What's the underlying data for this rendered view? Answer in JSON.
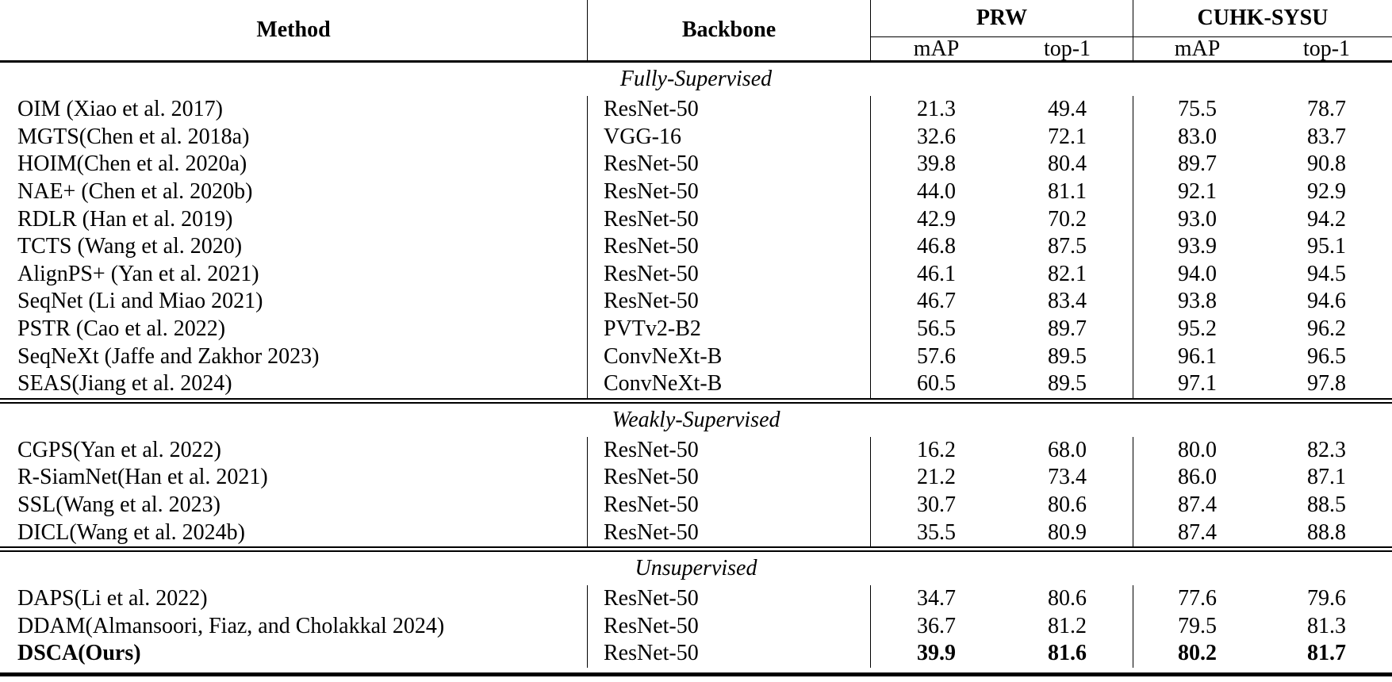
{
  "table": {
    "header": {
      "method": "Method",
      "backbone": "Backbone",
      "groups": [
        {
          "label": "PRW",
          "sub": [
            "mAP",
            "top-1"
          ]
        },
        {
          "label": "CUHK-SYSU",
          "sub": [
            "mAP",
            "top-1"
          ]
        }
      ]
    },
    "sections": [
      {
        "label": "Fully-Supervised",
        "rows": [
          {
            "method": "OIM (Xiao et al. 2017)",
            "backbone": "ResNet-50",
            "values": [
              "21.3",
              "49.4",
              "75.5",
              "78.7"
            ],
            "bold": false
          },
          {
            "method": "MGTS(Chen et al. 2018a)",
            "backbone": "VGG-16",
            "values": [
              "32.6",
              "72.1",
              "83.0",
              "83.7"
            ],
            "bold": false
          },
          {
            "method": "HOIM(Chen et al. 2020a)",
            "backbone": "ResNet-50",
            "values": [
              "39.8",
              "80.4",
              "89.7",
              "90.8"
            ],
            "bold": false
          },
          {
            "method": "NAE+ (Chen et al. 2020b)",
            "backbone": "ResNet-50",
            "values": [
              "44.0",
              "81.1",
              "92.1",
              "92.9"
            ],
            "bold": false
          },
          {
            "method": "RDLR (Han et al. 2019)",
            "backbone": "ResNet-50",
            "values": [
              "42.9",
              "70.2",
              "93.0",
              "94.2"
            ],
            "bold": false
          },
          {
            "method": "TCTS (Wang et al. 2020)",
            "backbone": "ResNet-50",
            "values": [
              "46.8",
              "87.5",
              "93.9",
              "95.1"
            ],
            "bold": false
          },
          {
            "method": "AlignPS+ (Yan et al. 2021)",
            "backbone": "ResNet-50",
            "values": [
              "46.1",
              "82.1",
              "94.0",
              "94.5"
            ],
            "bold": false
          },
          {
            "method": "SeqNet (Li and Miao 2021)",
            "backbone": "ResNet-50",
            "values": [
              "46.7",
              "83.4",
              "93.8",
              "94.6"
            ],
            "bold": false
          },
          {
            "method": "PSTR (Cao et al. 2022)",
            "backbone": "PVTv2-B2",
            "values": [
              "56.5",
              "89.7",
              "95.2",
              "96.2"
            ],
            "bold": false
          },
          {
            "method": "SeqNeXt (Jaffe and Zakhor 2023)",
            "backbone": "ConvNeXt-B",
            "values": [
              "57.6",
              "89.5",
              "96.1",
              "96.5"
            ],
            "bold": false
          },
          {
            "method": "SEAS(Jiang et al. 2024)",
            "backbone": "ConvNeXt-B",
            "values": [
              "60.5",
              "89.5",
              "97.1",
              "97.8"
            ],
            "bold": false
          }
        ]
      },
      {
        "label": "Weakly-Supervised",
        "rows": [
          {
            "method": "CGPS(Yan et al. 2022)",
            "backbone": "ResNet-50",
            "values": [
              "16.2",
              "68.0",
              "80.0",
              "82.3"
            ],
            "bold": false
          },
          {
            "method": "R-SiamNet(Han et al. 2021)",
            "backbone": "ResNet-50",
            "values": [
              "21.2",
              "73.4",
              "86.0",
              "87.1"
            ],
            "bold": false
          },
          {
            "method": "SSL(Wang et al. 2023)",
            "backbone": "ResNet-50",
            "values": [
              "30.7",
              "80.6",
              "87.4",
              "88.5"
            ],
            "bold": false
          },
          {
            "method": "DICL(Wang et al. 2024b)",
            "backbone": "ResNet-50",
            "values": [
              "35.5",
              "80.9",
              "87.4",
              "88.8"
            ],
            "bold": false
          }
        ]
      },
      {
        "label": "Unsupervised",
        "rows": [
          {
            "method": "DAPS(Li et al. 2022)",
            "backbone": "ResNet-50",
            "values": [
              "34.7",
              "80.6",
              "77.6",
              "79.6"
            ],
            "bold": false
          },
          {
            "method": "DDAM(Almansoori, Fiaz, and Cholakkal 2024)",
            "backbone": "ResNet-50",
            "values": [
              "36.7",
              "81.2",
              "79.5",
              "81.3"
            ],
            "bold": false
          },
          {
            "method": "DSCA(Ours)",
            "backbone": "ResNet-50",
            "values": [
              "39.9",
              "81.6",
              "80.2",
              "81.7"
            ],
            "bold": true
          }
        ]
      }
    ]
  }
}
